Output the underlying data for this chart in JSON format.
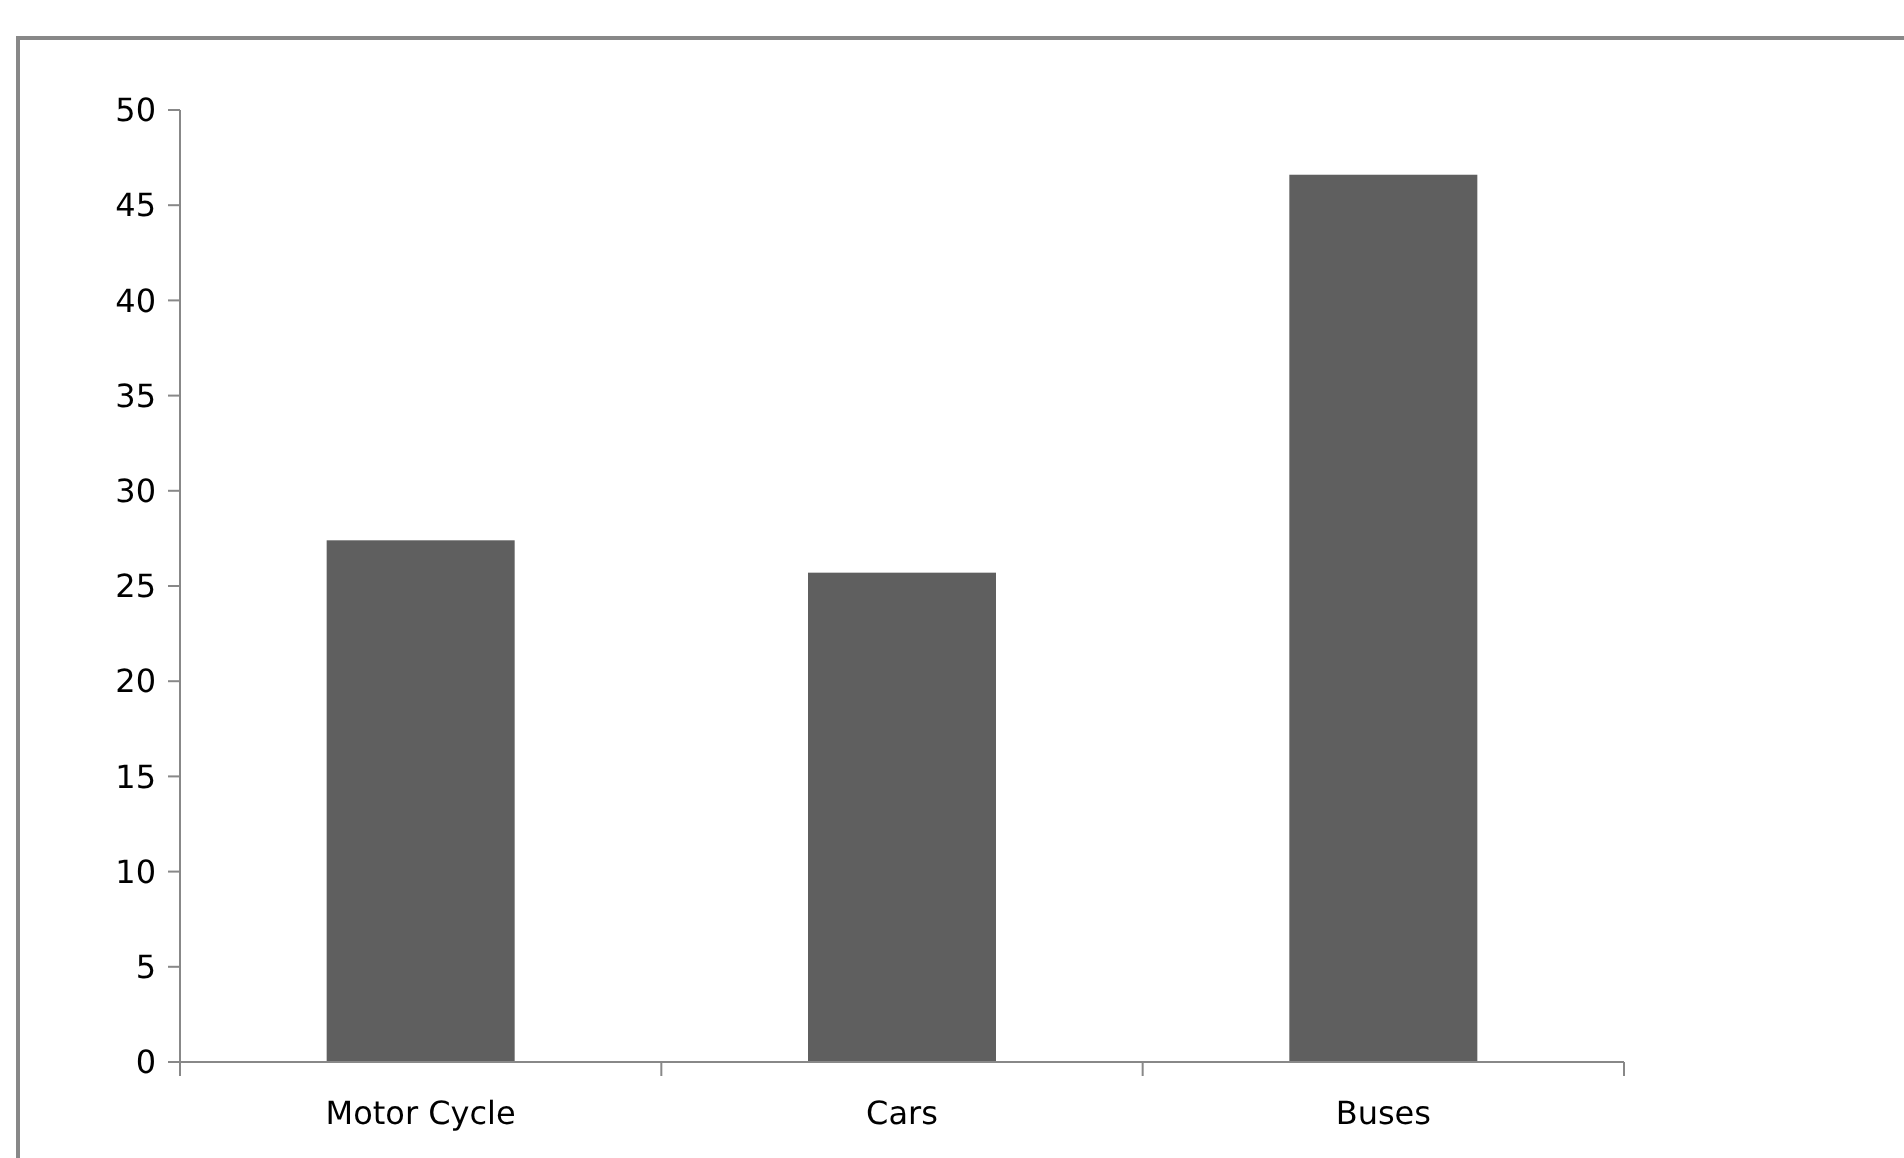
{
  "chart_data": {
    "type": "bar",
    "categories": [
      "Motor Cycle",
      "Cars",
      "Buses"
    ],
    "values": [
      27.4,
      25.7,
      46.6
    ],
    "color": "#5f5f5f",
    "ylim": [
      0,
      50
    ],
    "yticks": [
      0,
      5,
      10,
      15,
      20,
      25,
      30,
      35,
      40,
      45,
      50
    ],
    "grid": false
  }
}
